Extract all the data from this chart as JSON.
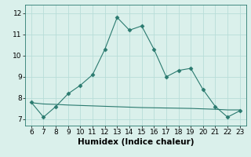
{
  "x": [
    6,
    7,
    8,
    9,
    10,
    11,
    12,
    13,
    14,
    15,
    16,
    17,
    18,
    19,
    20,
    21,
    22,
    23
  ],
  "y_main": [
    7.8,
    7.1,
    7.6,
    8.2,
    8.6,
    9.1,
    10.3,
    11.8,
    11.2,
    11.4,
    10.3,
    9.0,
    9.3,
    9.4,
    8.4,
    7.6,
    7.1,
    7.4
  ],
  "y_flat": [
    7.78,
    7.72,
    7.7,
    7.67,
    7.65,
    7.63,
    7.61,
    7.59,
    7.57,
    7.55,
    7.54,
    7.53,
    7.52,
    7.51,
    7.49,
    7.47,
    7.44,
    7.44
  ],
  "line_color": "#2a7a6f",
  "bg_color": "#daf0eb",
  "grid_color": "#b8ddd8",
  "xlabel": "Humidex (Indice chaleur)",
  "xlim": [
    5.5,
    23.5
  ],
  "ylim": [
    6.7,
    12.4
  ],
  "yticks": [
    7,
    8,
    9,
    10,
    11,
    12
  ],
  "xticks": [
    6,
    7,
    8,
    9,
    10,
    11,
    12,
    13,
    14,
    15,
    16,
    17,
    18,
    19,
    20,
    21,
    22,
    23
  ],
  "tick_fontsize": 6.5,
  "xlabel_fontsize": 7.5
}
